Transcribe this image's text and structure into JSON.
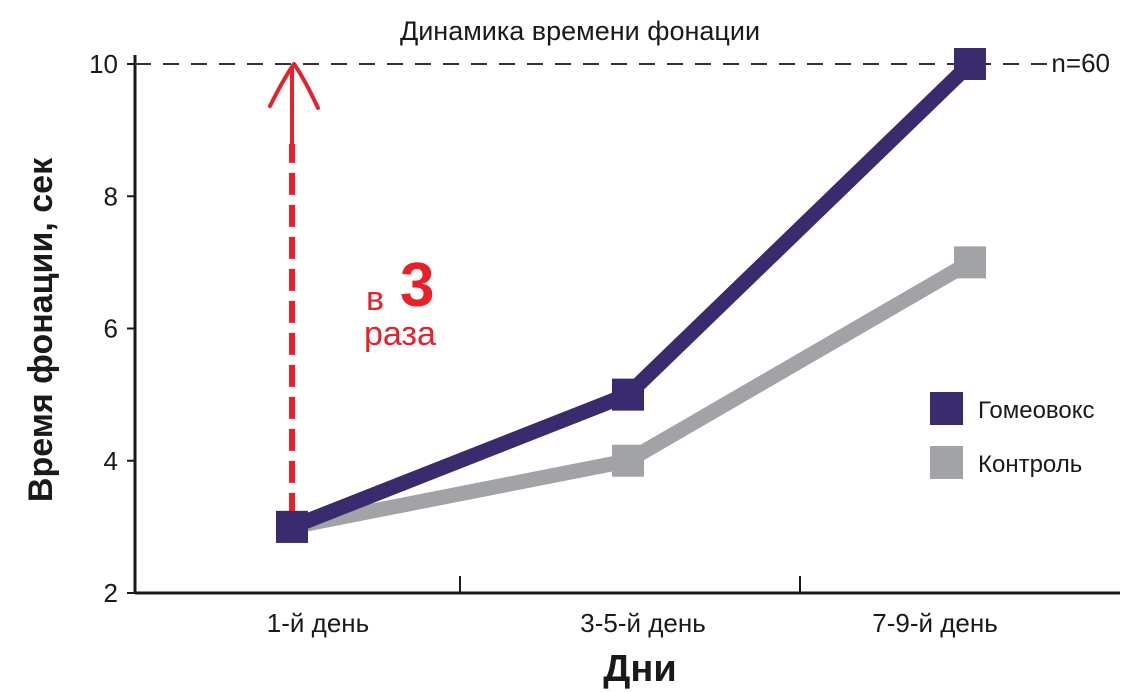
{
  "chart_data": {
    "type": "line",
    "title": "Динамика времени фонации",
    "xlabel": "Дни",
    "ylabel": "Время фонации, сек",
    "categories": [
      "1-й день",
      "3-5-й день",
      "7-9-й день"
    ],
    "ylim": [
      2,
      10
    ],
    "yticks": [
      2,
      4,
      6,
      8,
      10
    ],
    "sample_note": "n=60",
    "series": [
      {
        "name": "Гомеовокс",
        "color": "#3a2a6e",
        "values": [
          3,
          5,
          10
        ]
      },
      {
        "name": "Контроль",
        "color": "#a2a3a6",
        "values": [
          3,
          4,
          7
        ]
      }
    ],
    "reference_line": {
      "y": 10,
      "style": "dashed"
    },
    "annotation": {
      "prefix": "в",
      "number": "3",
      "suffix": "раза",
      "color": "#e8202a"
    },
    "legend_position": "right"
  }
}
